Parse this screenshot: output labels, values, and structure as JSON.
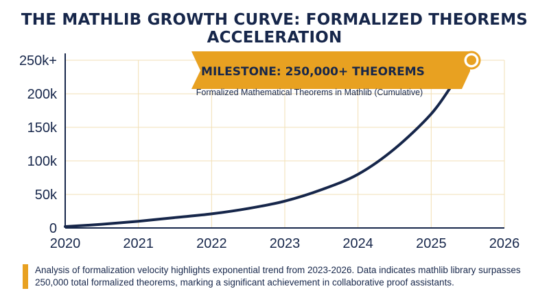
{
  "chart_data": {
    "type": "line",
    "title": "THE MATHLIB GROWTH CURVE: FORMALIZED THEOREMS ACCELERATION",
    "subtitle": "Formalized Mathematical Theorems in Mathlib (Cumulative)",
    "x_ticks": [
      "2020",
      "2021",
      "2022",
      "2023",
      "2024",
      "2025",
      "2026"
    ],
    "y_ticks": [
      "0",
      "50k",
      "100k",
      "150k",
      "200k",
      "250k+"
    ],
    "xlim": [
      2020,
      2026
    ],
    "ylim": [
      0,
      250000
    ],
    "grid": true,
    "series": [
      {
        "x": [
          2020,
          2020.5,
          2021,
          2021.5,
          2022,
          2022.5,
          2023,
          2023.5,
          2024,
          2024.5,
          2025,
          2025.3,
          2025.55
        ],
        "y": [
          2000,
          5500,
          10000,
          15500,
          21000,
          29000,
          40000,
          57000,
          80000,
          118000,
          170000,
          215000,
          250000
        ]
      }
    ],
    "annotations": [
      {
        "text": "MILESTONE: 250,000+ THEOREMS",
        "x": 2025.55,
        "y": 250000
      }
    ],
    "colors": {
      "line": "#16264a",
      "accent": "#e8a121",
      "grid": "#f2dfb4"
    }
  },
  "footer": {
    "text": "Analysis of formalization velocity highlights exponential trend from 2023-2026. Data indicates mathlib library surpasses 250,000 total formalized theorems, marking a significant achievement in collaborative proof assistants."
  }
}
